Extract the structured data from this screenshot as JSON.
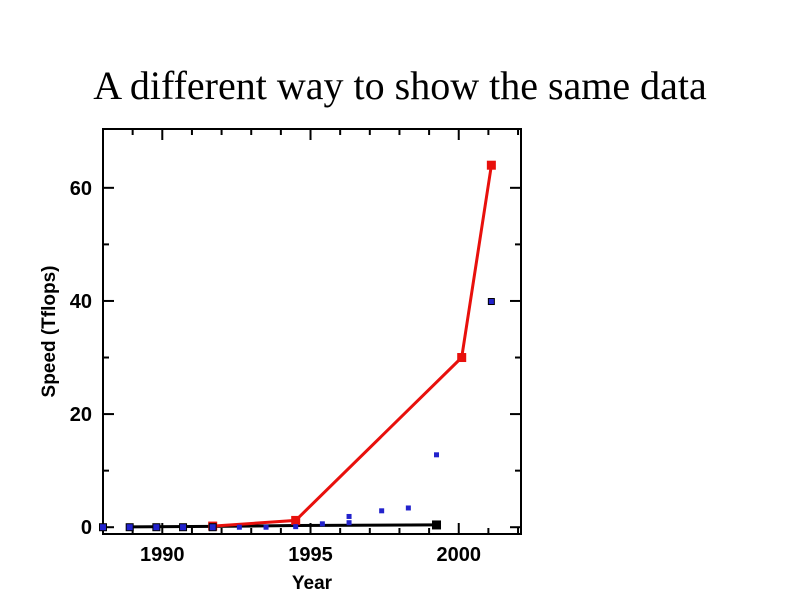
{
  "slide": {
    "title": "A different way to show the same data",
    "background": "#ffffff"
  },
  "chart_data": {
    "type": "scatter",
    "title": "",
    "xlabel": "Year",
    "ylabel": "Speed (Tflops)",
    "xlim": [
      1988.0,
      2002.1
    ],
    "ylim": [
      -1.2,
      70.4
    ],
    "x_major_ticks": [
      1990,
      1995,
      2000
    ],
    "x_minor_ticks": [
      1989,
      1991,
      1992,
      1993,
      1994,
      1996,
      1997,
      1998,
      1999,
      2001,
      2002
    ],
    "y_major_ticks": [
      0,
      20,
      40,
      60
    ],
    "y_minor_ticks": [
      10,
      30,
      50
    ],
    "grid": false,
    "legend": "none",
    "axis_color": "#000000",
    "series": [
      {
        "name": "black-trend-line",
        "color": "#000000",
        "line": true,
        "line_width": 3,
        "marker": "square",
        "marker_size": 0,
        "points": [
          [
            1988.9,
            0.05
          ],
          [
            1991.7,
            0.15
          ],
          [
            1994.5,
            0.3
          ],
          [
            1999.25,
            0.4
          ]
        ]
      },
      {
        "name": "black-end-marker",
        "color": "#000000",
        "line": false,
        "marker": "square",
        "marker_size": 9,
        "points": [
          [
            1999.25,
            0.4
          ]
        ]
      },
      {
        "name": "red-line",
        "color": "#e8100c",
        "line": true,
        "line_width": 3,
        "marker": "square",
        "marker_size": 9,
        "points": [
          [
            1991.7,
            0.2
          ],
          [
            1994.5,
            1.2
          ],
          [
            2000.1,
            30
          ],
          [
            2001.1,
            64
          ]
        ]
      },
      {
        "name": "blue-points",
        "color": "#2222cc",
        "edge_color": "#000000",
        "line": false,
        "marker": "square",
        "marker_size": 5,
        "marker_sizes": [
          7,
          7,
          7,
          7,
          7,
          5,
          5,
          5,
          5,
          5,
          5,
          5,
          5,
          5,
          6
        ],
        "points": [
          [
            1988.0,
            0
          ],
          [
            1988.9,
            0
          ],
          [
            1989.8,
            0
          ],
          [
            1990.7,
            0
          ],
          [
            1991.7,
            0
          ],
          [
            1992.6,
            0
          ],
          [
            1993.5,
            0
          ],
          [
            1994.5,
            0.1
          ],
          [
            1995.4,
            0.6
          ],
          [
            1996.3,
            0.8
          ],
          [
            1996.3,
            1.9
          ],
          [
            1997.4,
            2.9
          ],
          [
            1998.3,
            3.4
          ],
          [
            1999.25,
            12.8
          ],
          [
            2001.1,
            39.9
          ]
        ]
      }
    ]
  }
}
